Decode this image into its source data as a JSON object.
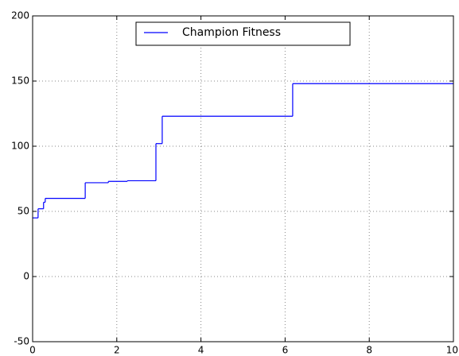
{
  "chart_data": {
    "type": "line",
    "drawstyle": "steps-post",
    "x": [
      0,
      0.13,
      0.26,
      0.3,
      1.25,
      1.8,
      2.25,
      2.93,
      3.08,
      6.18,
      10
    ],
    "series": [
      {
        "name": "Champion Fitness",
        "color": "#0000ff",
        "values": [
          45,
          52,
          57,
          60,
          72,
          73,
          73.5,
          102,
          123,
          148,
          148
        ]
      }
    ],
    "xlim": [
      0,
      10
    ],
    "xticks": [
      0,
      2,
      4,
      6,
      8,
      10
    ],
    "ylim": [
      -50,
      200
    ],
    "yticks": [
      -50,
      0,
      50,
      100,
      150,
      200
    ],
    "grid": true,
    "legend": "upper center"
  }
}
